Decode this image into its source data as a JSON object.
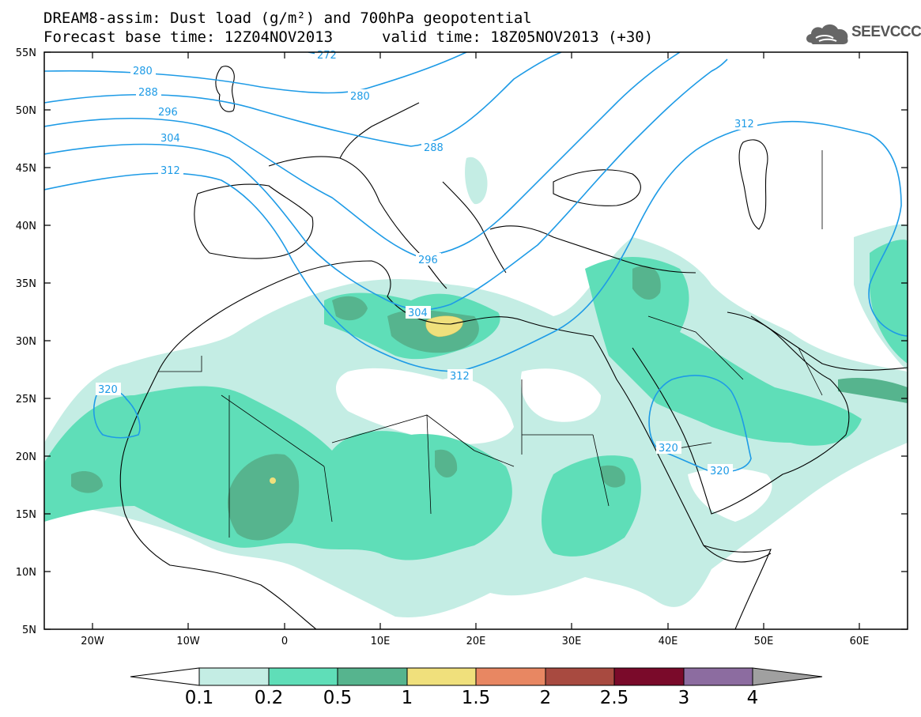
{
  "title": {
    "line1": "DREAM8-assim: Dust load (g/m²) and 700hPa geopotential",
    "line2_base": "Forecast base time: 12Z04NOV2013",
    "line2_valid": "valid time: 18Z05NOV2013 (+30)"
  },
  "logo": {
    "text": "SEEVCCC",
    "icon": "cloud-logo-icon"
  },
  "map": {
    "lon_range": [
      -25,
      65
    ],
    "lat_range": [
      5,
      55
    ],
    "lat_ticks": [
      "55N",
      "50N",
      "45N",
      "40N",
      "35N",
      "30N",
      "25N",
      "20N",
      "15N",
      "10N",
      "5N"
    ],
    "lon_ticks": [
      "20W",
      "10W",
      "0",
      "10E",
      "20E",
      "30E",
      "40E",
      "50E",
      "60E"
    ]
  },
  "contour_labels": [
    "272",
    "280",
    "280",
    "288",
    "288",
    "296",
    "296",
    "304",
    "304",
    "312",
    "312",
    "312",
    "320",
    "320",
    "320"
  ],
  "colorbar": {
    "labels": [
      "0.1",
      "0.2",
      "0.5",
      "1",
      "1.5",
      "2",
      "2.5",
      "3",
      "4"
    ],
    "colors": [
      "#c4ede4",
      "#5fdeb8",
      "#56b48e",
      "#f0e07c",
      "#e88762",
      "#a84a40",
      "#7a0a2a",
      "#8c6ca0",
      "#a0a0a0"
    ],
    "low_color": "#ffffff"
  },
  "dust_colors": {
    "light": "#c4ede4",
    "medium": "#5fdeb8",
    "dark": "#56b48e",
    "yellow": "#f0e07c"
  },
  "contour_color": "#1e9be6"
}
